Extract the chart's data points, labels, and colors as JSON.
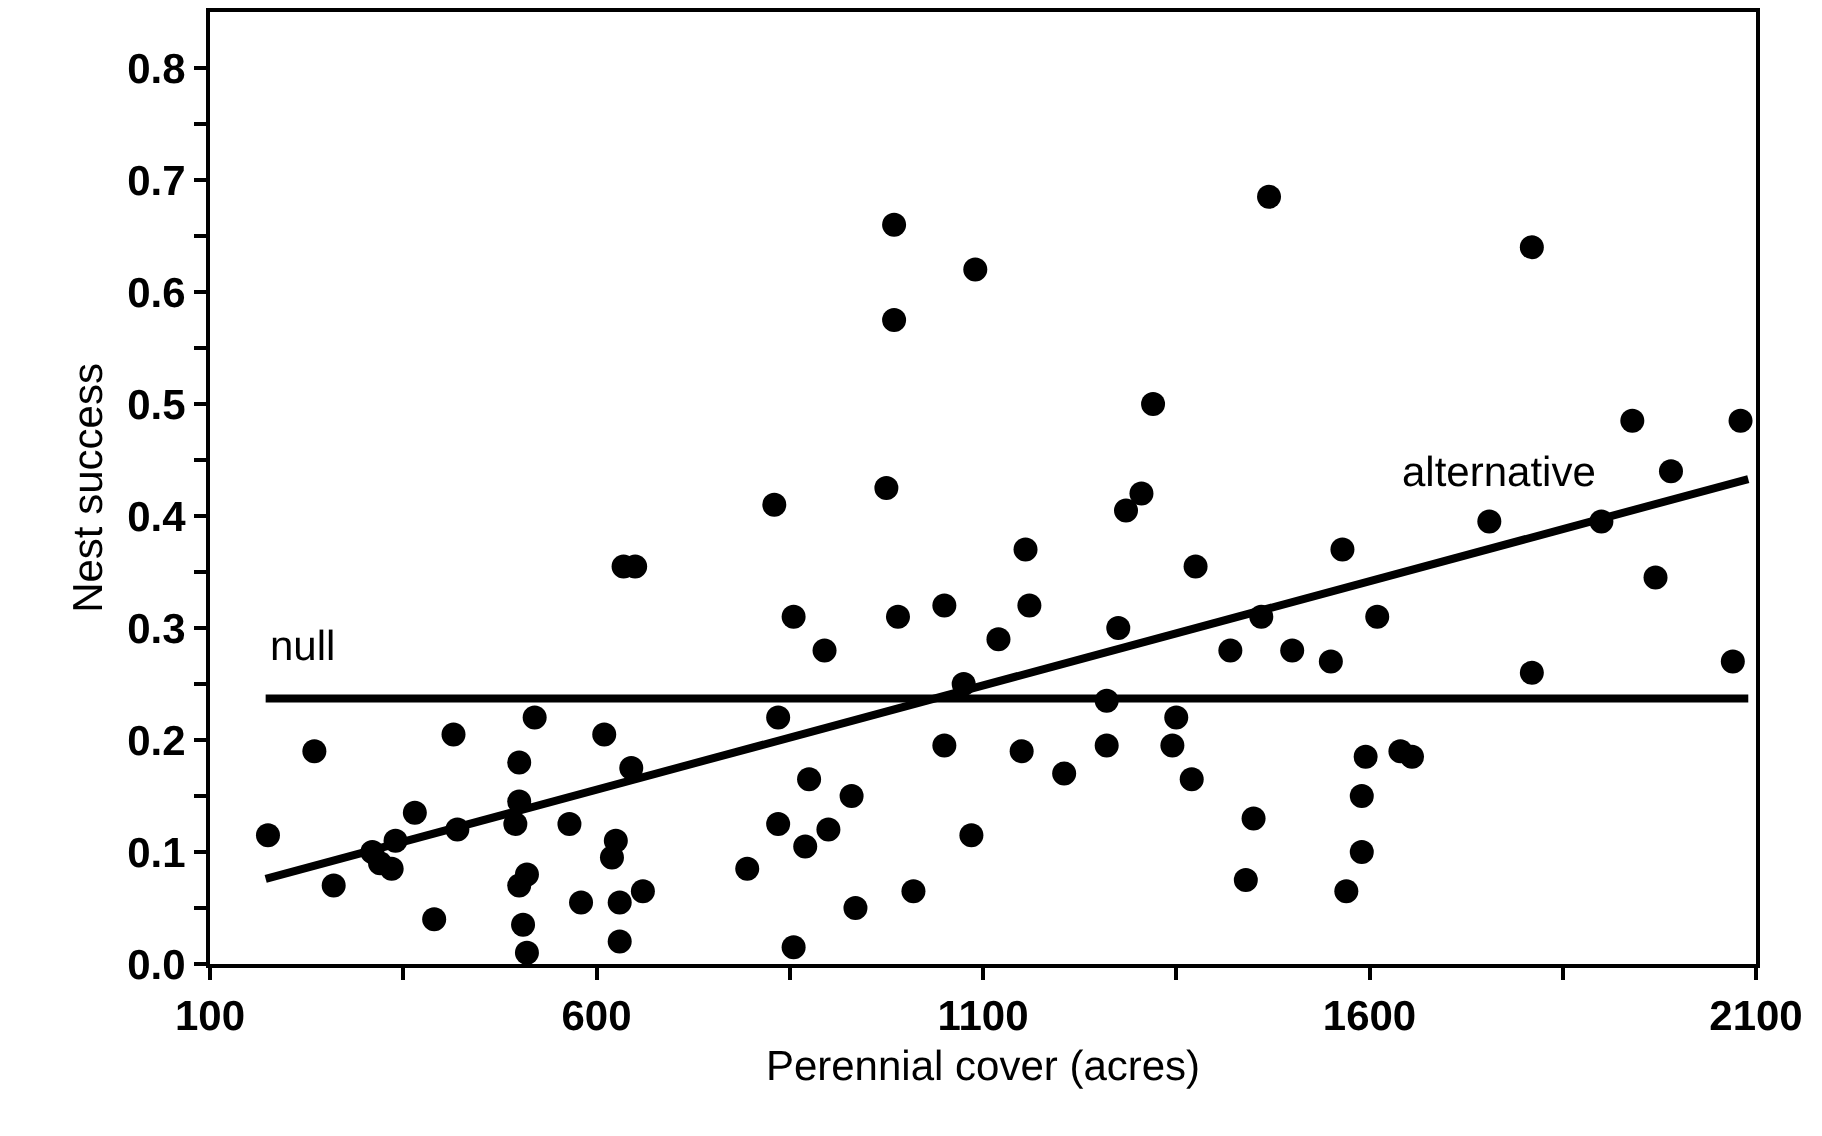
{
  "chart_data": {
    "type": "scatter",
    "xlabel": "Perennial cover (acres)",
    "ylabel": "Nest success",
    "xlim": [
      100,
      2100
    ],
    "xticks": [
      100,
      {
        "value": 350,
        "label": null
      },
      600,
      {
        "value": 850,
        "label": null
      },
      1100,
      {
        "value": 1350,
        "label": null
      },
      1600,
      {
        "value": 1850,
        "label": null
      },
      2100
    ],
    "ylim": [
      0,
      0.85
    ],
    "yticks": [
      {
        "value": 0,
        "label": "0.0"
      },
      {
        "value": 0.05,
        "label": null
      },
      {
        "value": 0.1,
        "label": "0.1"
      },
      {
        "value": 0.15,
        "label": null
      },
      {
        "value": 0.2,
        "label": "0.2"
      },
      {
        "value": 0.25,
        "label": null
      },
      {
        "value": 0.3,
        "label": "0.3"
      },
      {
        "value": 0.35,
        "label": null
      },
      {
        "value": 0.4,
        "label": "0.4"
      },
      {
        "value": 0.45,
        "label": null
      },
      {
        "value": 0.5,
        "label": "0.5"
      },
      {
        "value": 0.55,
        "label": null
      },
      {
        "value": 0.6,
        "label": "0.6"
      },
      {
        "value": 0.65,
        "label": null
      },
      {
        "value": 0.7,
        "label": "0.7"
      },
      {
        "value": 0.75,
        "label": null
      },
      {
        "value": 0.8,
        "label": "0.8"
      }
    ],
    "grid": false,
    "series": [
      {
        "marker": "circle",
        "color": "#000000",
        "x": [
          635,
          650,
          235,
          175,
          260,
          310,
          320,
          335,
          340,
          365,
          415,
          420,
          390,
          520,
          500,
          500,
          495,
          510,
          500,
          505,
          510,
          565,
          610,
          645,
          625,
          620,
          580,
          630,
          660,
          630,
          795,
          985,
          1090,
          985,
          1470,
          1320,
          830,
          975,
          1285,
          1305,
          1155,
          1375,
          855,
          990,
          1050,
          1160,
          895,
          1120,
          1275,
          1460,
          1420,
          1500,
          1075,
          835,
          1260,
          1350,
          1050,
          1150,
          1260,
          1345,
          1205,
          1370,
          875,
          930,
          835,
          900,
          870,
          1085,
          1450,
          1440,
          935,
          1010,
          855,
          1810,
          1940,
          2080,
          1990,
          1755,
          1900,
          1970,
          1565,
          1610,
          1550,
          1810,
          2070,
          1595,
          1640,
          1655,
          1590,
          1590,
          1570
        ],
        "values": [
          0.355,
          0.355,
          0.19,
          0.115,
          0.07,
          0.1,
          0.09,
          0.085,
          0.11,
          0.135,
          0.205,
          0.12,
          0.04,
          0.22,
          0.18,
          0.145,
          0.125,
          0.08,
          0.07,
          0.035,
          0.01,
          0.125,
          0.205,
          0.175,
          0.11,
          0.095,
          0.055,
          0.055,
          0.065,
          0.02,
          0.085,
          0.66,
          0.62,
          0.575,
          0.685,
          0.5,
          0.41,
          0.425,
          0.405,
          0.42,
          0.37,
          0.355,
          0.31,
          0.31,
          0.32,
          0.32,
          0.28,
          0.29,
          0.3,
          0.31,
          0.28,
          0.28,
          0.25,
          0.22,
          0.235,
          0.22,
          0.195,
          0.19,
          0.195,
          0.195,
          0.17,
          0.165,
          0.165,
          0.15,
          0.125,
          0.12,
          0.105,
          0.115,
          0.13,
          0.075,
          0.05,
          0.065,
          0.015,
          0.64,
          0.485,
          0.485,
          0.44,
          0.395,
          0.395,
          0.345,
          0.37,
          0.31,
          0.27,
          0.26,
          0.27,
          0.185,
          0.19,
          0.185,
          0.15,
          0.1,
          0.065
        ]
      },
      {
        "type": "line",
        "name": "null",
        "marker": "none",
        "color": "#000000",
        "x": [
          172,
          2090
        ],
        "values": [
          0.237,
          0.237
        ]
      },
      {
        "type": "line",
        "name": "alternative",
        "marker": "none",
        "color": "#000000",
        "x": [
          172,
          2090
        ],
        "values": [
          0.076,
          0.433
        ]
      }
    ]
  }
}
